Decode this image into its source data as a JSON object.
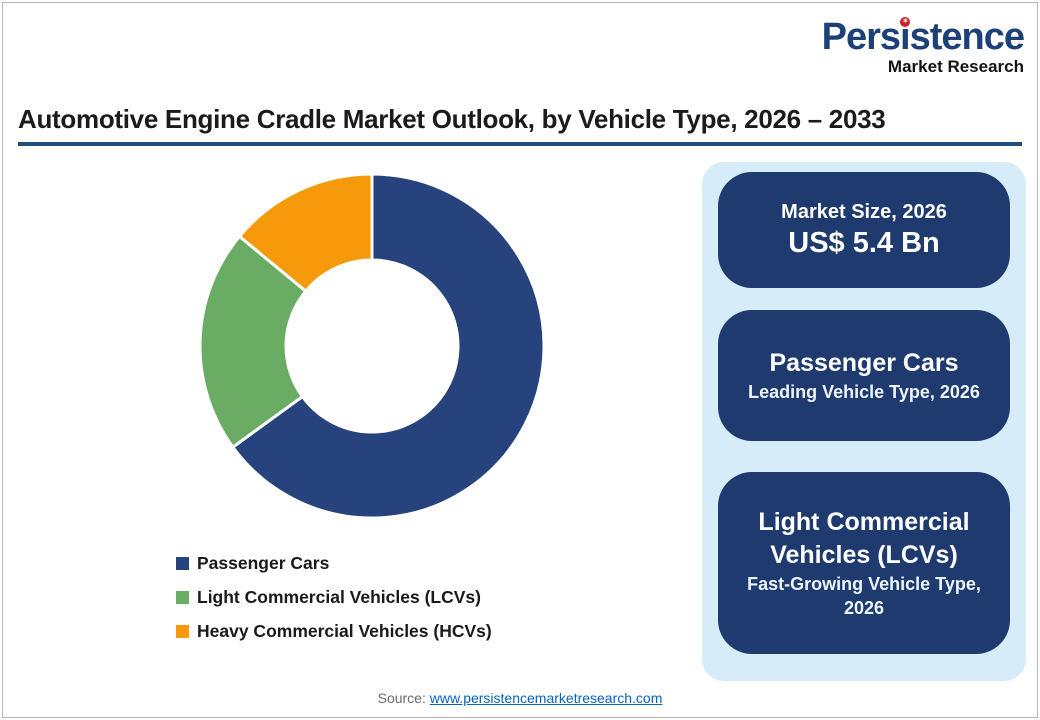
{
  "logo": {
    "brand": "Persistence",
    "brand_left": "Pers",
    "brand_i": "ı",
    "brand_right": "stence",
    "star_glyph": "✶",
    "subtitle": "Market Research"
  },
  "header": {
    "title": "Automotive Engine Cradle Market Outlook, by Vehicle Type, 2026 – 2033"
  },
  "chart_data": {
    "type": "pie",
    "subtype": "donut",
    "categories": [
      "Passenger Cars",
      "Light Commercial Vehicles (LCVs)",
      "Heavy Commercial Vehicles (HCVs)"
    ],
    "values": [
      65,
      21,
      14
    ],
    "values_unit": "percent share (estimated from arc angles)",
    "colors": [
      "#27437e",
      "#6aac64",
      "#f6990a"
    ],
    "start_angle_deg": 0,
    "direction": "clockwise",
    "inner_radius_ratio": 0.5,
    "legend_position": "bottom-left",
    "data_labels": false
  },
  "cards": [
    {
      "title": "Market Size, 2026",
      "value": "US$ 5.4 Bn"
    },
    {
      "title": "Passenger Cars",
      "subtitle": "Leading Vehicle Type, 2026"
    },
    {
      "title": "Light Commercial Vehicles (LCVs)",
      "subtitle": "Fast-Growing Vehicle Type, 2026"
    }
  ],
  "footer": {
    "source_label": "Source:",
    "source_link_text": "www.persistencemarketresearch.com"
  },
  "theme": {
    "brand_blue": "#1d4077",
    "brand_dot_red": "#d02128",
    "title_rule": "#1f4e79",
    "panel_bg": "#d7ecf9",
    "card_bg": "#1e3a6e",
    "link_blue": "#0563c1"
  }
}
